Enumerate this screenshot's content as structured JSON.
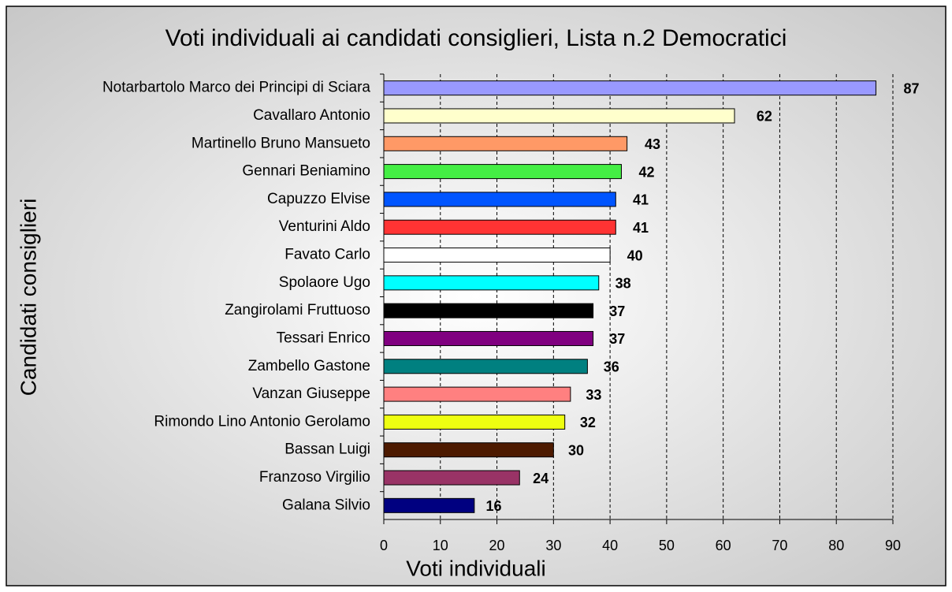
{
  "chart_data": {
    "type": "bar",
    "orientation": "horizontal",
    "title": "Voti individuali ai candidati consiglieri, Lista n.2 Democratici",
    "xlabel": "Voti individuali",
    "ylabel": "Candidati consiglieri",
    "categories": [
      "Notarbartolo Marco dei Principi di Sciara",
      "Cavallaro Antonio",
      "Martinello Bruno Mansueto",
      "Gennari Beniamino",
      "Capuzzo Elvise",
      "Venturini Aldo",
      "Favato Carlo",
      "Spolaore Ugo",
      "Zangirolami Fruttuoso",
      "Tessari Enrico",
      "Zambello Gastone",
      "Vanzan Giuseppe",
      "Rimondo Lino Antonio Gerolamo",
      "Bassan Luigi",
      "Franzoso Virgilio",
      "Galana Silvio"
    ],
    "values": [
      87,
      62,
      43,
      42,
      41,
      41,
      40,
      38,
      37,
      37,
      36,
      33,
      32,
      30,
      24,
      16
    ],
    "colors": [
      "#9999ff",
      "#ffffcc",
      "#ff9966",
      "#44ee44",
      "#0055ff",
      "#ff3333",
      "#ffffff",
      "#00ffff",
      "#000000",
      "#800080",
      "#008080",
      "#ff8080",
      "#eeff11",
      "#4d1a00",
      "#993366",
      "#000080"
    ],
    "xlim": [
      0,
      90
    ],
    "xticks": [
      0,
      10,
      20,
      30,
      40,
      50,
      60,
      70,
      80,
      90
    ],
    "grid": true
  }
}
